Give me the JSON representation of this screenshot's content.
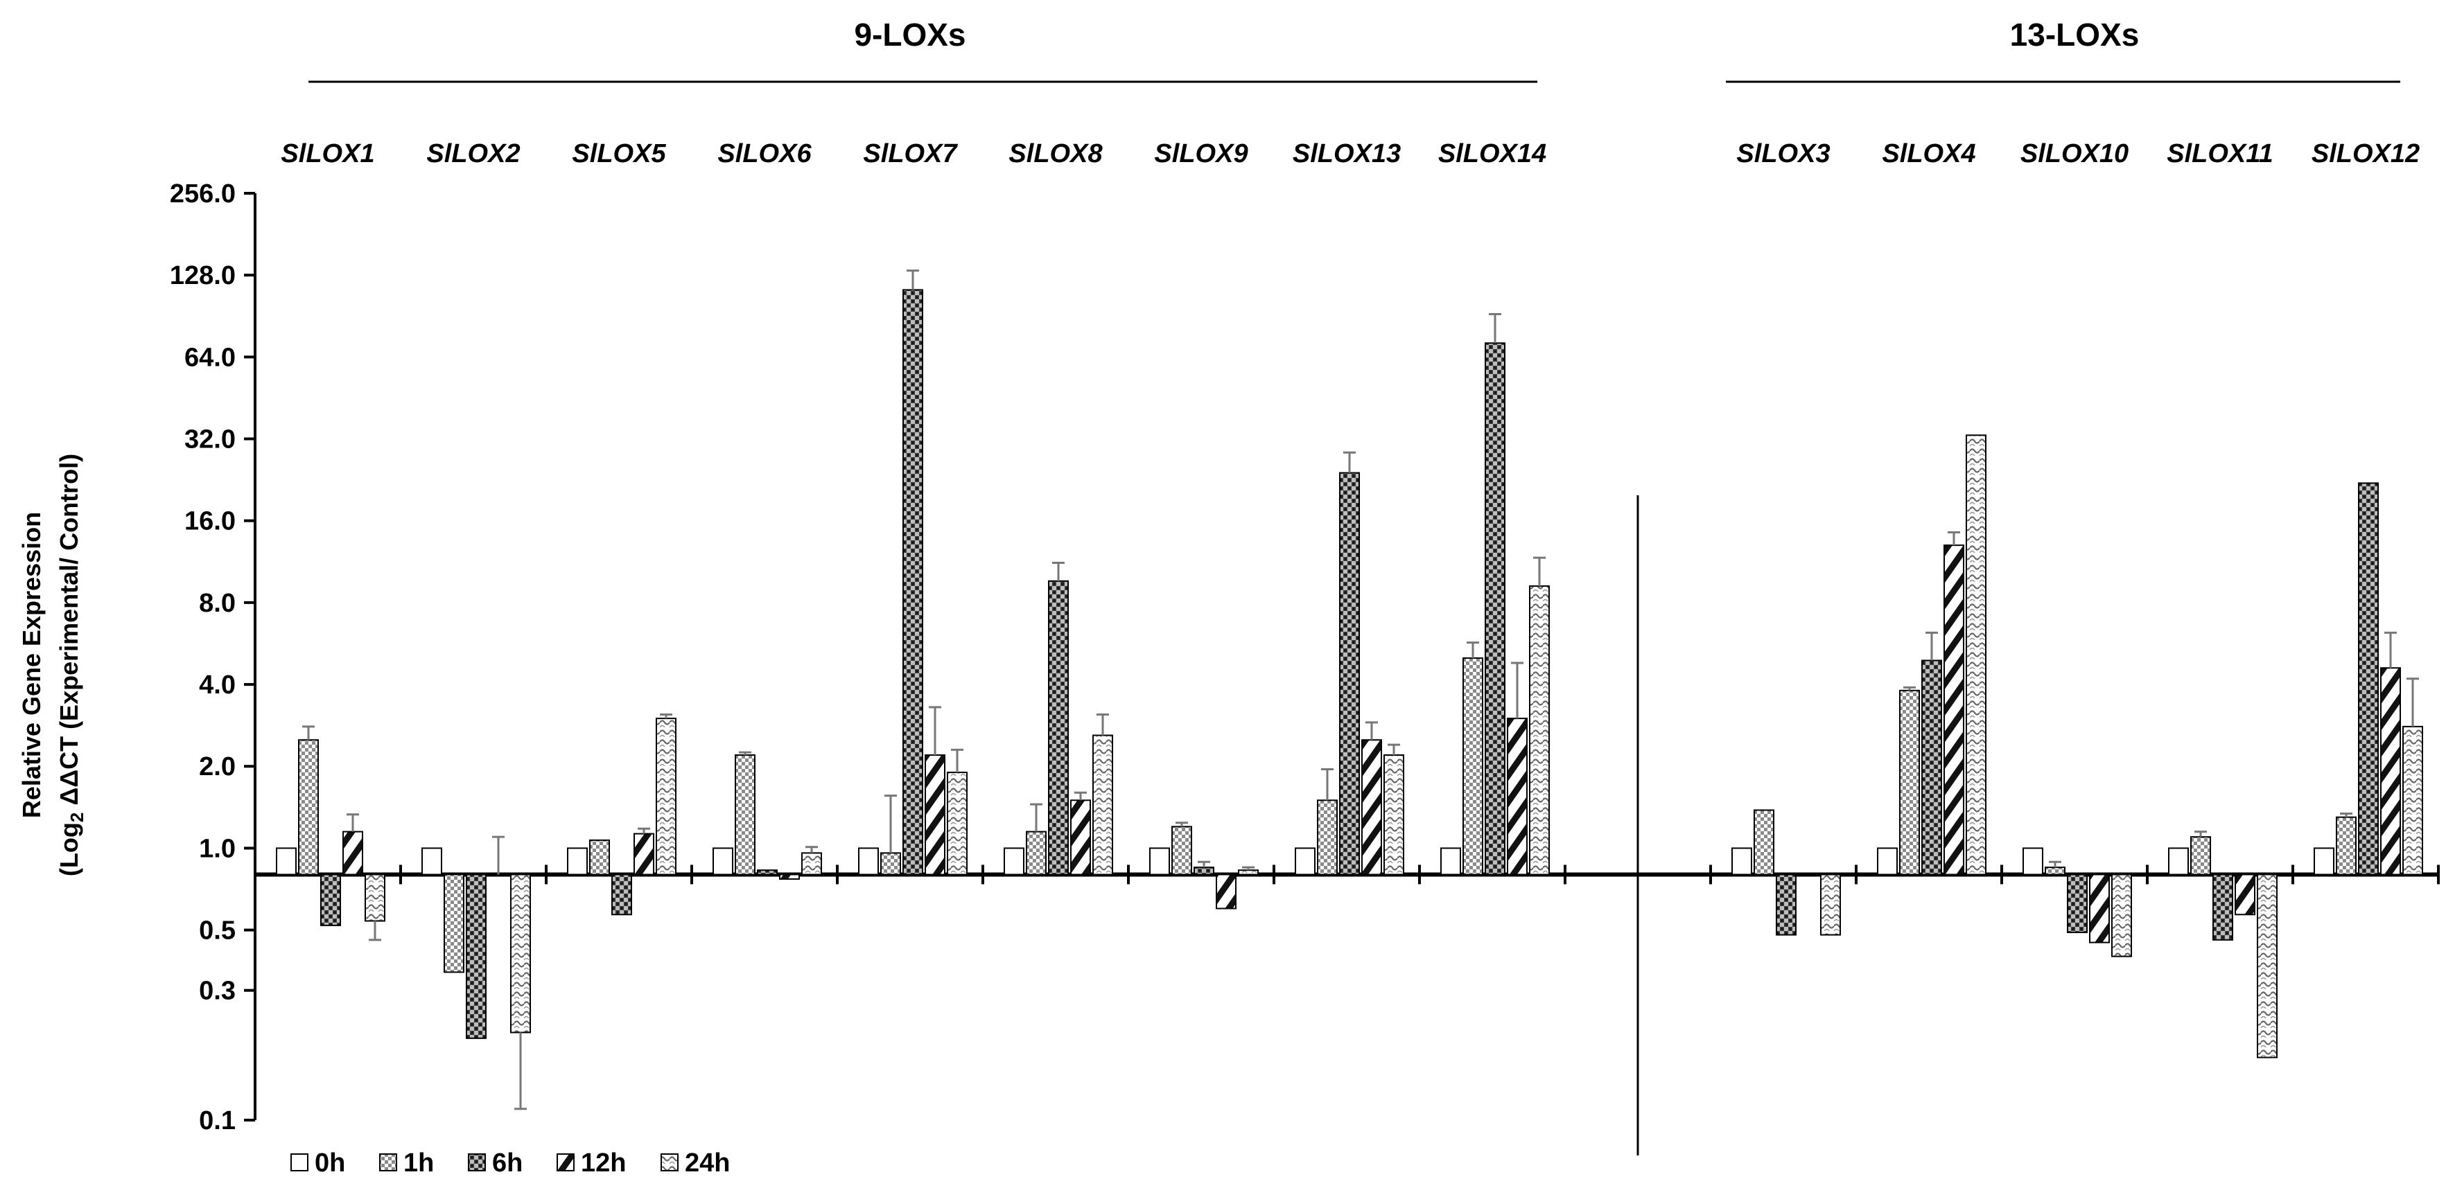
{
  "chart_data": {
    "type": "bar",
    "title": "",
    "ylabel_line1": "Relative Gene Expression",
    "ylabel_line2": "(Log",
    "ylabel_sub": "2",
    "ylabel_line2_rest": " ΔΔCT (Experimental/ Control)",
    "yscale": "log2",
    "ylim": [
      0.1,
      256.0
    ],
    "baseline": 0.8,
    "y_ticks": [
      {
        "value": 256.0,
        "label": "256.0"
      },
      {
        "value": 128.0,
        "label": "128.0"
      },
      {
        "value": 64.0,
        "label": "64.0"
      },
      {
        "value": 32.0,
        "label": "32.0"
      },
      {
        "value": 16.0,
        "label": "16.0"
      },
      {
        "value": 8.0,
        "label": "8.0"
      },
      {
        "value": 4.0,
        "label": "4.0"
      },
      {
        "value": 2.0,
        "label": "2.0"
      },
      {
        "value": 1.0,
        "label": "1.0"
      },
      {
        "value": 0.5,
        "label": "0.5"
      },
      {
        "value": 0.3,
        "label": "0.3"
      },
      {
        "value": 0.1,
        "label": "0.1"
      }
    ],
    "groups": [
      {
        "label": "9-LOXs",
        "genes": [
          "SlLOX1",
          "SlLOX2",
          "SlLOX5",
          "SlLOX6",
          "SlLOX7",
          "SlLOX8",
          "SlLOX9",
          "SlLOX13",
          "SlLOX14"
        ]
      },
      {
        "label": "13-LOXs",
        "genes": [
          "SlLOX3",
          "SlLOX4",
          "SlLOX10",
          "SlLOX11",
          "SlLOX12"
        ]
      }
    ],
    "series": [
      {
        "name": "0h",
        "pattern": "white"
      },
      {
        "name": "1h",
        "pattern": "dots"
      },
      {
        "name": "6h",
        "pattern": "dark-check"
      },
      {
        "name": "12h",
        "pattern": "diag"
      },
      {
        "name": "24h",
        "pattern": "wave"
      }
    ],
    "legend_position": "bottom-left",
    "genes": [
      {
        "name": "SlLOX1",
        "values": [
          1.0,
          2.5,
          0.52,
          1.15,
          0.54
        ],
        "errors": [
          0,
          0.3,
          0,
          0.18,
          0.08
        ]
      },
      {
        "name": "SlLOX2",
        "values": [
          1.0,
          0.35,
          0.2,
          0.8,
          0.21
        ],
        "errors": [
          0,
          0,
          0,
          0.3,
          0.1
        ]
      },
      {
        "name": "SlLOX5",
        "values": [
          1.0,
          1.07,
          0.57,
          1.13,
          3.0
        ],
        "errors": [
          0,
          0,
          0,
          0.05,
          0.1
        ]
      },
      {
        "name": "SlLOX6",
        "values": [
          1.0,
          2.2,
          0.83,
          0.77,
          0.96
        ],
        "errors": [
          0,
          0.05,
          0,
          0,
          0.05
        ]
      },
      {
        "name": "SlLOX7",
        "values": [
          1.0,
          0.96,
          113.0,
          2.2,
          1.9
        ],
        "errors": [
          0,
          0.6,
          20,
          1.1,
          0.4
        ]
      },
      {
        "name": "SlLOX8",
        "values": [
          1.0,
          1.15,
          9.6,
          1.5,
          2.6
        ],
        "errors": [
          0,
          0.3,
          1.6,
          0.1,
          0.5
        ]
      },
      {
        "name": "SlLOX9",
        "values": [
          1.0,
          1.2,
          0.85,
          0.6,
          0.83
        ],
        "errors": [
          0,
          0.04,
          0.04,
          0,
          0.02
        ]
      },
      {
        "name": "SlLOX13",
        "values": [
          1.0,
          1.5,
          24.0,
          2.5,
          2.2
        ],
        "errors": [
          0,
          0.45,
          4.5,
          0.4,
          0.2
        ]
      },
      {
        "name": "SlLOX14",
        "values": [
          1.0,
          5.0,
          72.0,
          3.0,
          9.2
        ],
        "errors": [
          0,
          0.7,
          20,
          1.8,
          2.5
        ]
      },
      {
        "name": "SlLOX3",
        "values": [
          1.0,
          1.38,
          0.48,
          0.8,
          0.48
        ],
        "errors": [
          0,
          0,
          0,
          0,
          0
        ]
      },
      {
        "name": "SlLOX4",
        "values": [
          1.0,
          3.8,
          4.9,
          13.0,
          33.0
        ],
        "errors": [
          0,
          0.1,
          1.3,
          1.5,
          0
        ]
      },
      {
        "name": "SlLOX10",
        "values": [
          1.0,
          0.85,
          0.49,
          0.45,
          0.4
        ],
        "errors": [
          0,
          0.04,
          0,
          0,
          0
        ]
      },
      {
        "name": "SlLOX11",
        "values": [
          1.0,
          1.1,
          0.46,
          0.57,
          0.17
        ],
        "errors": [
          0,
          0.05,
          0,
          0,
          0
        ]
      },
      {
        "name": "SlLOX12",
        "values": [
          1.0,
          1.3,
          22.0,
          4.6,
          2.8
        ],
        "errors": [
          0,
          0.04,
          0,
          1.6,
          1.4
        ]
      }
    ]
  }
}
